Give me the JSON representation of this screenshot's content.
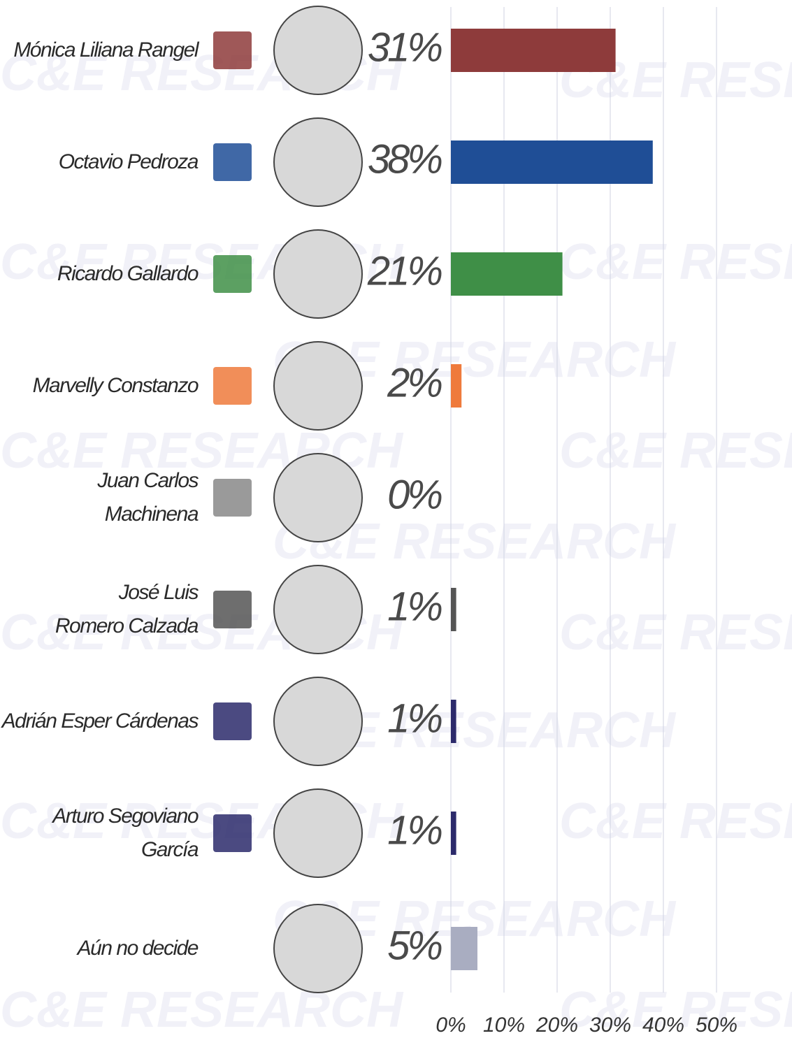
{
  "chart_data": {
    "type": "bar",
    "orientation": "horizontal",
    "watermark": "C&E RESEARCH",
    "categories": [
      "Mónica Liliana Rangel",
      "Octavio Pedroza",
      "Ricardo Gallardo",
      "Marvelly Constanzo",
      "Juan Carlos Machinena",
      "José Luis\nRomero Calzada",
      "Adrián Esper Cárdenas",
      "Arturo Segoviano García",
      "Aún no decide"
    ],
    "values": [
      31,
      38,
      21,
      2,
      0,
      1,
      1,
      1,
      5
    ],
    "value_labels": [
      "31%",
      "38%",
      "21%",
      "2%",
      "0%",
      "1%",
      "1%",
      "1%",
      "5%"
    ],
    "colors": [
      "#8e3b3b",
      "#1f4e96",
      "#3f8f47",
      "#ef7a3c",
      "#888888",
      "#555555",
      "#2c2a6b",
      "#2c2a6b",
      "#a9adc1"
    ],
    "xlim": [
      0,
      50
    ],
    "xticks": [
      {
        "value": 0,
        "label": "0%"
      },
      {
        "value": 10,
        "label": "10%"
      },
      {
        "value": 20,
        "label": "20%"
      },
      {
        "value": 30,
        "label": "30%"
      },
      {
        "value": 40,
        "label": "40%"
      },
      {
        "value": 50,
        "label": "50%"
      }
    ],
    "grid": true
  }
}
